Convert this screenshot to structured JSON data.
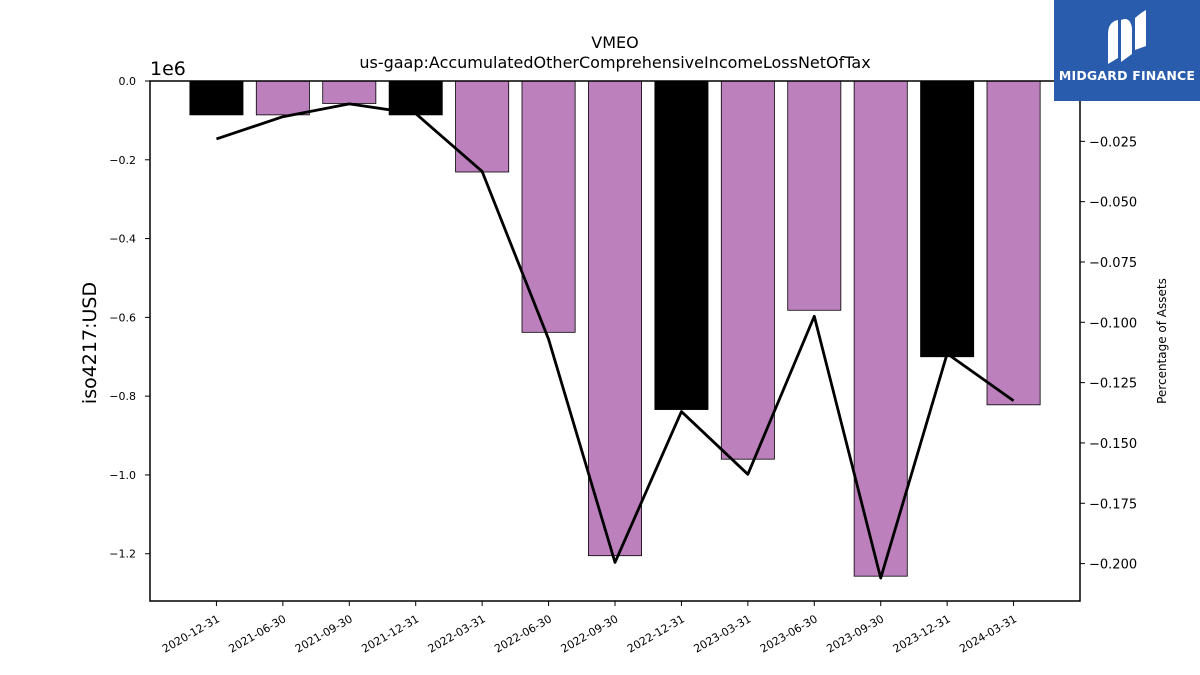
{
  "chart_data": {
    "type": "bar",
    "title_line1": "VMEO",
    "title_line2": "us-gaap:AccumulatedOtherComprehensiveIncomeLossNetOfTax",
    "ylabel": "iso4217:USD",
    "y2label": "Percentage of Assets",
    "y_offset_label": "1e6",
    "categories": [
      "2020-12-31",
      "2021-06-30",
      "2021-09-30",
      "2021-12-31",
      "2022-03-31",
      "2022-06-30",
      "2022-09-30",
      "2022-12-31",
      "2023-03-31",
      "2023-06-30",
      "2023-09-30",
      "2023-12-31",
      "2024-03-31"
    ],
    "bar_values": [
      -86000,
      -86000,
      -57000,
      -86000,
      -231000,
      -638000,
      -1205000,
      -834000,
      -960000,
      -582000,
      -1257000,
      -700000,
      -822000
    ],
    "bar_colors": [
      "#000000",
      "#bc80bd",
      "#bc80bd",
      "#000000",
      "#bc80bd",
      "#bc80bd",
      "#bc80bd",
      "#000000",
      "#bc80bd",
      "#bc80bd",
      "#bc80bd",
      "#000000",
      "#bc80bd"
    ],
    "line_values": [
      -0.024,
      -0.0148,
      -0.0095,
      -0.0135,
      -0.0375,
      -0.107,
      -0.1995,
      -0.137,
      -0.163,
      -0.0975,
      -0.206,
      -0.113,
      -0.1325
    ],
    "y_ticks": [
      0.0,
      -0.2,
      -0.4,
      -0.6,
      -0.8,
      -1.0,
      -1.2
    ],
    "y_tick_labels": [
      "0.0",
      "−0.2",
      "−0.4",
      "−0.6",
      "−0.8",
      "−1.0",
      "−1.2"
    ],
    "y2_ticks": [
      -0.025,
      -0.05,
      -0.075,
      -0.1,
      -0.125,
      -0.15,
      -0.175,
      -0.2
    ],
    "y2_tick_labels": [
      "−0.025",
      "−0.050",
      "−0.075",
      "−0.100",
      "−0.125",
      "−0.150",
      "−0.175",
      "−0.200"
    ],
    "ylim": [
      -1320000,
      0
    ],
    "y2lim": [
      -0.2155,
      0.0
    ]
  },
  "logo": {
    "text": "MIDGARD FINANCE",
    "bg_color": "#2a5cae"
  }
}
